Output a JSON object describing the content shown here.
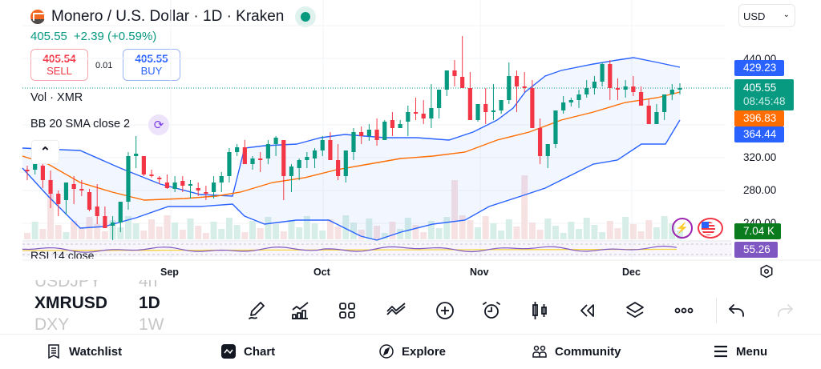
{
  "header": {
    "title": "Monero / U.S. Dollar · 1D · Kraken",
    "logo_icon": "monero-logo-icon",
    "live_status": "market-open",
    "last_price": "405.55",
    "change": "+2.39 (+0.59%)",
    "currency_selector": "USD"
  },
  "trade": {
    "sell_price": "405.54",
    "sell_label": "SELL",
    "spread": "0.01",
    "buy_price": "405.55",
    "buy_label": "BUY"
  },
  "indicators": {
    "volume": "Vol · XMR",
    "bb": "BB 20 SMA close 2",
    "rsi": "RSI 14 close"
  },
  "price_axis": {
    "ticks": [
      "440.00",
      "320.00",
      "280.00",
      "240.00"
    ],
    "tags": {
      "bb_upper": "429.23",
      "last_price": "405.55",
      "countdown": "08:45:48",
      "bb_basis": "396.83",
      "bb_lower": "364.44",
      "volume": "7.04 K",
      "rsi": "55.26"
    }
  },
  "time_axis": {
    "months": [
      "Sep",
      "Oct",
      "Nov",
      "Dec"
    ]
  },
  "symbols": [
    {
      "symbol": "USDJPY",
      "interval": "4h",
      "state": "faded"
    },
    {
      "symbol": "XMRUSD",
      "interval": "1D",
      "state": "active"
    },
    {
      "symbol": "DXY",
      "interval": "1W",
      "state": "faded"
    }
  ],
  "toolbar": {
    "items": [
      "draw",
      "indicators",
      "layouts",
      "compare",
      "add",
      "alert",
      "chart-type",
      "replay",
      "objects",
      "more",
      "undo",
      "redo"
    ]
  },
  "nav": {
    "items": [
      {
        "label": "Watchlist",
        "icon": "watchlist-icon"
      },
      {
        "label": "Chart",
        "icon": "chart-icon"
      },
      {
        "label": "Explore",
        "icon": "compass-icon"
      },
      {
        "label": "Community",
        "icon": "community-icon"
      },
      {
        "label": "Menu",
        "icon": "menu-icon"
      }
    ]
  },
  "colors": {
    "up": "#089981",
    "down": "#f23645",
    "bb_band": "#2962ff",
    "bb_basis": "#ff6d00",
    "volume_tag": "#0a7c1e",
    "rsi": "#7e57c2",
    "accent_blue": "#2962ff"
  }
}
